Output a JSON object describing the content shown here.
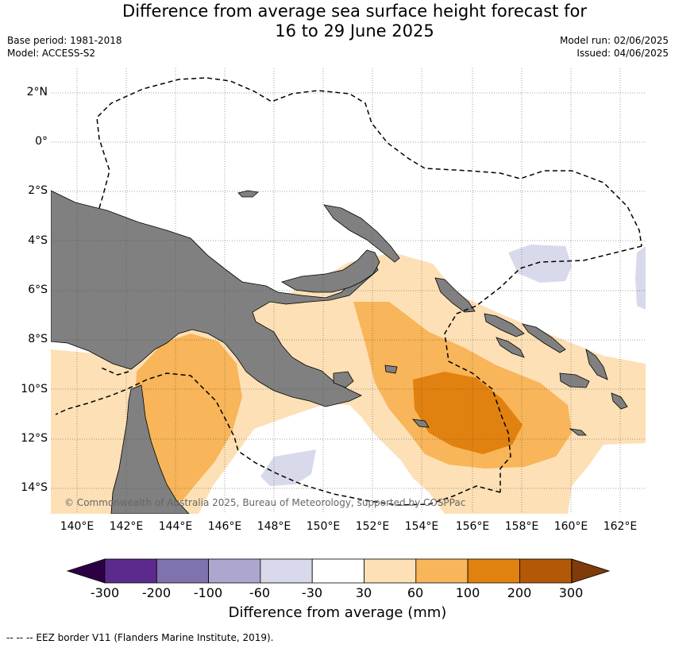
{
  "title": {
    "line1": "Difference from average sea surface height forecast for",
    "line2": "16 to 29 June 2025"
  },
  "meta": {
    "base_period": "Base period: 1981-2018",
    "model": "Model: ACCESS-S2",
    "model_run": "Model run: 02/06/2025",
    "issued": "Issued: 04/06/2025"
  },
  "map": {
    "lat_labels": [
      "2°N",
      "0°",
      "2°S",
      "4°S",
      "6°S",
      "8°S",
      "10°S",
      "12°S",
      "14°S"
    ],
    "lon_labels": [
      "140°E",
      "142°E",
      "144°E",
      "146°E",
      "148°E",
      "150°E",
      "152°E",
      "154°E",
      "156°E",
      "158°E",
      "160°E",
      "162°E"
    ],
    "copyright": "© Commonwealth of Australia 2025, Bureau of Meteorology, supported by COSPPac",
    "land_color": "#808080"
  },
  "colorbar": {
    "ticks": [
      "-300",
      "-200",
      "-100",
      "-60",
      "-30",
      "30",
      "60",
      "100",
      "200",
      "300"
    ],
    "colors": [
      "#5c2a8c",
      "#7f72ad",
      "#ada6cf",
      "#d8d9ea",
      "#ffffff",
      "#fde0b6",
      "#f8b559",
      "#e1810f",
      "#b35806"
    ],
    "extend_low_color": "#2d0046",
    "extend_high_color": "#7f3b08",
    "label": "Difference from average (mm)"
  },
  "footer": {
    "legend": "-- -- -- EEZ border V11 (Flanders Marine Institute, 2019)."
  }
}
